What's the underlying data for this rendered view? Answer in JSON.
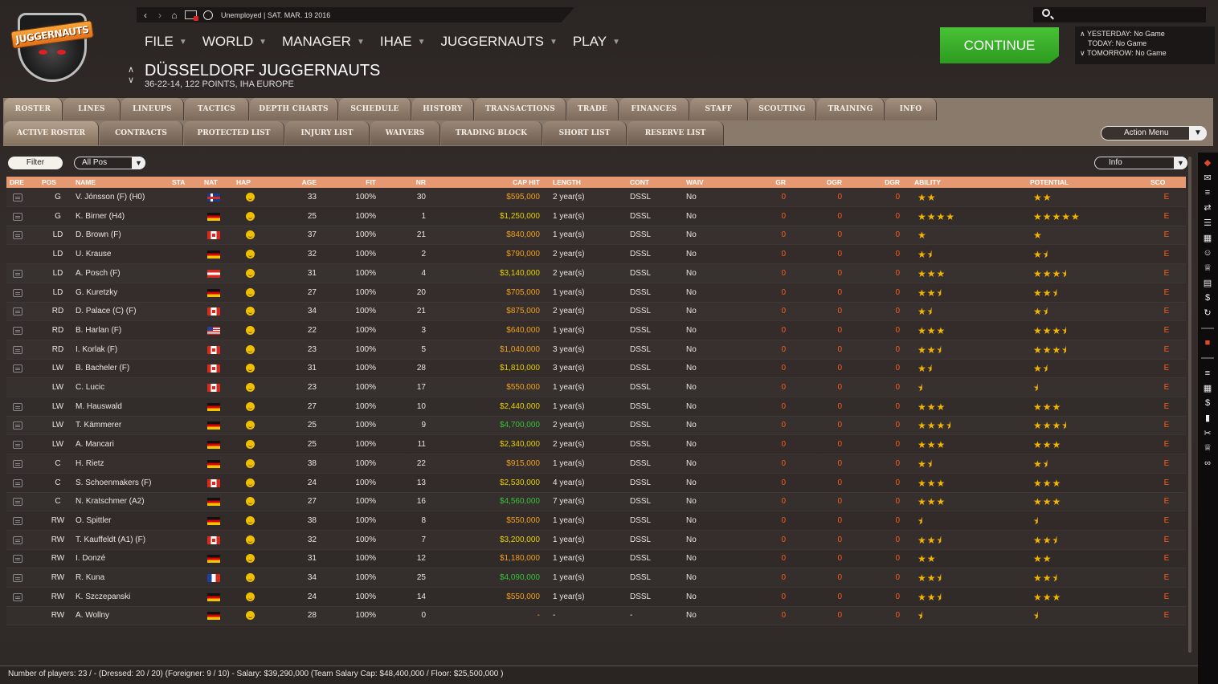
{
  "topbar": {
    "status": "Unemployed |  SAT. MAR. 19 2016"
  },
  "logo_text": "JUGGERNAUTS",
  "menu": [
    {
      "label": "FILE"
    },
    {
      "label": "WORLD"
    },
    {
      "label": "MANAGER"
    },
    {
      "label": "IHAE"
    },
    {
      "label": "JUGGERNAUTS"
    },
    {
      "label": "PLAY"
    }
  ],
  "team": {
    "name": "DÜSSELDORF JUGGERNAUTS",
    "record": "36-22-14, 122 POINTS, IHA EUROPE"
  },
  "continue_label": "CONTINUE",
  "schedule": {
    "yesterday": "YESTERDAY: No Game",
    "today": "TODAY: No Game",
    "tomorrow": "TOMORROW: No Game"
  },
  "tabs": [
    "ROSTER",
    "LINES",
    "LINEUPS",
    "TACTICS",
    "DEPTH CHARTS",
    "SCHEDULE",
    "HISTORY",
    "TRANSACTIONS",
    "TRADE",
    "FINANCES",
    "STAFF",
    "SCOUTING",
    "TRAINING",
    "INFO"
  ],
  "subtabs": [
    "ACTIVE ROSTER",
    "CONTRACTS",
    "PROTECTED LIST",
    "INJURY LIST",
    "WAIVERS",
    "TRADING BLOCK",
    "SHORT LIST",
    "RESERVE LIST"
  ],
  "action_menu": "Action Menu",
  "filter": {
    "button": "Filter",
    "position": "All Pos",
    "view": "Info"
  },
  "columns": [
    "DRE",
    "POS",
    "NAME",
    "STA",
    "NAT",
    "HAP",
    "AGE",
    "FIT",
    "NR",
    "CAP HIT",
    "LENGTH",
    "CONT",
    "WAIV",
    "GR",
    "OGR",
    "DGR",
    "ABILITY",
    "POTENTIAL",
    "SCO"
  ],
  "players": [
    {
      "dressed": true,
      "pos": "G",
      "name": "V. Jónsson (F) (H0)",
      "nat": "is",
      "age": "33",
      "fit": "100%",
      "nr": "30",
      "cap": "$595,000",
      "capc": "orange",
      "len": "2 year(s)",
      "cont": "DSSL",
      "waiv": "No",
      "gr": "0",
      "ogr": "0",
      "dgr": "0",
      "ability": "★★",
      "potential": "★★",
      "sco": "E"
    },
    {
      "dressed": true,
      "pos": "G",
      "name": "K. Birner (H4)",
      "nat": "de",
      "age": "25",
      "fit": "100%",
      "nr": "1",
      "cap": "$1,250,000",
      "capc": "yellow",
      "len": "1 year(s)",
      "cont": "DSSL",
      "waiv": "No",
      "gr": "0",
      "ogr": "0",
      "dgr": "0",
      "ability": "★★★★",
      "potential": "★★★★★",
      "sco": "E"
    },
    {
      "dressed": true,
      "pos": "LD",
      "name": "D. Brown (F)",
      "nat": "ca",
      "age": "37",
      "fit": "100%",
      "nr": "21",
      "cap": "$840,000",
      "capc": "orange",
      "len": "1 year(s)",
      "cont": "DSSL",
      "waiv": "No",
      "gr": "0",
      "ogr": "0",
      "dgr": "0",
      "ability": "★",
      "potential": "★",
      "sco": "E"
    },
    {
      "dressed": false,
      "pos": "LD",
      "name": "U. Krause",
      "nat": "de",
      "age": "32",
      "fit": "100%",
      "nr": "2",
      "cap": "$790,000",
      "capc": "orange",
      "len": "2 year(s)",
      "cont": "DSSL",
      "waiv": "No",
      "gr": "0",
      "ogr": "0",
      "dgr": "0",
      "ability": "★⯨",
      "potential": "★⯨",
      "sco": "E"
    },
    {
      "dressed": true,
      "pos": "LD",
      "name": "A. Posch (F)",
      "nat": "at",
      "age": "31",
      "fit": "100%",
      "nr": "4",
      "cap": "$3,140,000",
      "capc": "yellow",
      "len": "2 year(s)",
      "cont": "DSSL",
      "waiv": "No",
      "gr": "0",
      "ogr": "0",
      "dgr": "0",
      "ability": "★★★",
      "potential": "★★★⯨",
      "sco": "E"
    },
    {
      "dressed": true,
      "pos": "LD",
      "name": "G. Kuretzky",
      "nat": "de",
      "age": "27",
      "fit": "100%",
      "nr": "20",
      "cap": "$705,000",
      "capc": "orange",
      "len": "1 year(s)",
      "cont": "DSSL",
      "waiv": "No",
      "gr": "0",
      "ogr": "0",
      "dgr": "0",
      "ability": "★★⯨",
      "potential": "★★⯨",
      "sco": "E"
    },
    {
      "dressed": true,
      "pos": "RD",
      "name": "D. Palace (C) (F)",
      "nat": "ca",
      "age": "34",
      "fit": "100%",
      "nr": "21",
      "cap": "$875,000",
      "capc": "orange",
      "len": "2 year(s)",
      "cont": "DSSL",
      "waiv": "No",
      "gr": "0",
      "ogr": "0",
      "dgr": "0",
      "ability": "★⯨",
      "potential": "★⯨",
      "sco": "E"
    },
    {
      "dressed": true,
      "pos": "RD",
      "name": "B. Harlan (F)",
      "nat": "us",
      "age": "22",
      "fit": "100%",
      "nr": "3",
      "cap": "$640,000",
      "capc": "orange",
      "len": "1 year(s)",
      "cont": "DSSL",
      "waiv": "No",
      "gr": "0",
      "ogr": "0",
      "dgr": "0",
      "ability": "★★★",
      "potential": "★★★⯨",
      "sco": "E"
    },
    {
      "dressed": true,
      "pos": "RD",
      "name": "I. Korlak (F)",
      "nat": "ca",
      "age": "23",
      "fit": "100%",
      "nr": "5",
      "cap": "$1,040,000",
      "capc": "orange",
      "len": "3 year(s)",
      "cont": "DSSL",
      "waiv": "No",
      "gr": "0",
      "ogr": "0",
      "dgr": "0",
      "ability": "★★⯨",
      "potential": "★★★⯨",
      "sco": "E"
    },
    {
      "dressed": true,
      "pos": "LW",
      "name": "B. Bacheler (F)",
      "nat": "ca",
      "age": "31",
      "fit": "100%",
      "nr": "28",
      "cap": "$1,810,000",
      "capc": "yellow",
      "len": "3 year(s)",
      "cont": "DSSL",
      "waiv": "No",
      "gr": "0",
      "ogr": "0",
      "dgr": "0",
      "ability": "★⯨",
      "potential": "★⯨",
      "sco": "E"
    },
    {
      "dressed": false,
      "pos": "LW",
      "name": "C. Lucic",
      "nat": "ca",
      "age": "23",
      "fit": "100%",
      "nr": "17",
      "cap": "$550,000",
      "capc": "orange",
      "len": "1 year(s)",
      "cont": "DSSL",
      "waiv": "No",
      "gr": "0",
      "ogr": "0",
      "dgr": "0",
      "ability": "⯨",
      "potential": "⯨",
      "sco": "E"
    },
    {
      "dressed": true,
      "pos": "LW",
      "name": "M. Hauswald",
      "nat": "de",
      "age": "27",
      "fit": "100%",
      "nr": "10",
      "cap": "$2,440,000",
      "capc": "yellow",
      "len": "1 year(s)",
      "cont": "DSSL",
      "waiv": "No",
      "gr": "0",
      "ogr": "0",
      "dgr": "0",
      "ability": "★★★",
      "potential": "★★★",
      "sco": "E"
    },
    {
      "dressed": true,
      "pos": "LW",
      "name": "T. Kämmerer",
      "nat": "de",
      "age": "25",
      "fit": "100%",
      "nr": "9",
      "cap": "$4,700,000",
      "capc": "green",
      "len": "2 year(s)",
      "cont": "DSSL",
      "waiv": "No",
      "gr": "0",
      "ogr": "0",
      "dgr": "0",
      "ability": "★★★⯨",
      "potential": "★★★⯨",
      "sco": "E"
    },
    {
      "dressed": true,
      "pos": "LW",
      "name": "A. Mancari",
      "nat": "de",
      "age": "25",
      "fit": "100%",
      "nr": "11",
      "cap": "$2,340,000",
      "capc": "yellow",
      "len": "2 year(s)",
      "cont": "DSSL",
      "waiv": "No",
      "gr": "0",
      "ogr": "0",
      "dgr": "0",
      "ability": "★★★",
      "potential": "★★★",
      "sco": "E"
    },
    {
      "dressed": true,
      "pos": "C",
      "name": "H. Rietz",
      "nat": "de",
      "age": "38",
      "fit": "100%",
      "nr": "22",
      "cap": "$915,000",
      "capc": "orange",
      "len": "1 year(s)",
      "cont": "DSSL",
      "waiv": "No",
      "gr": "0",
      "ogr": "0",
      "dgr": "0",
      "ability": "★⯨",
      "potential": "★⯨",
      "sco": "E"
    },
    {
      "dressed": true,
      "pos": "C",
      "name": "S. Schoenmakers (F)",
      "nat": "ca",
      "age": "24",
      "fit": "100%",
      "nr": "13",
      "cap": "$2,530,000",
      "capc": "yellow",
      "len": "4 year(s)",
      "cont": "DSSL",
      "waiv": "No",
      "gr": "0",
      "ogr": "0",
      "dgr": "0",
      "ability": "★★★",
      "potential": "★★★",
      "sco": "E"
    },
    {
      "dressed": true,
      "pos": "C",
      "name": "N. Kratschmer (A2)",
      "nat": "de",
      "age": "27",
      "fit": "100%",
      "nr": "16",
      "cap": "$4,560,000",
      "capc": "green",
      "len": "7 year(s)",
      "cont": "DSSL",
      "waiv": "No",
      "gr": "0",
      "ogr": "0",
      "dgr": "0",
      "ability": "★★★",
      "potential": "★★★",
      "sco": "E"
    },
    {
      "dressed": true,
      "pos": "RW",
      "name": "O. Spittler",
      "nat": "de",
      "age": "38",
      "fit": "100%",
      "nr": "8",
      "cap": "$550,000",
      "capc": "orange",
      "len": "1 year(s)",
      "cont": "DSSL",
      "waiv": "No",
      "gr": "0",
      "ogr": "0",
      "dgr": "0",
      "ability": "⯨",
      "potential": "⯨",
      "sco": "E"
    },
    {
      "dressed": true,
      "pos": "RW",
      "name": "T. Kauffeldt (A1) (F)",
      "nat": "ca",
      "age": "32",
      "fit": "100%",
      "nr": "7",
      "cap": "$3,200,000",
      "capc": "yellow",
      "len": "1 year(s)",
      "cont": "DSSL",
      "waiv": "No",
      "gr": "0",
      "ogr": "0",
      "dgr": "0",
      "ability": "★★⯨",
      "potential": "★★⯨",
      "sco": "E"
    },
    {
      "dressed": true,
      "pos": "RW",
      "name": "I. Donzé",
      "nat": "de",
      "age": "31",
      "fit": "100%",
      "nr": "12",
      "cap": "$1,180,000",
      "capc": "orange",
      "len": "1 year(s)",
      "cont": "DSSL",
      "waiv": "No",
      "gr": "0",
      "ogr": "0",
      "dgr": "0",
      "ability": "★★",
      "potential": "★★",
      "sco": "E"
    },
    {
      "dressed": true,
      "pos": "RW",
      "name": "R. Kuna",
      "nat": "fr",
      "age": "34",
      "fit": "100%",
      "nr": "25",
      "cap": "$4,090,000",
      "capc": "green",
      "len": "1 year(s)",
      "cont": "DSSL",
      "waiv": "No",
      "gr": "0",
      "ogr": "0",
      "dgr": "0",
      "ability": "★★⯨",
      "potential": "★★⯨",
      "sco": "E"
    },
    {
      "dressed": true,
      "pos": "RW",
      "name": "K. Szczepanski",
      "nat": "de",
      "age": "24",
      "fit": "100%",
      "nr": "14",
      "cap": "$550,000",
      "capc": "orange",
      "len": "1 year(s)",
      "cont": "DSSL",
      "waiv": "No",
      "gr": "0",
      "ogr": "0",
      "dgr": "0",
      "ability": "★★⯨",
      "potential": "★★★",
      "sco": "E"
    },
    {
      "dressed": false,
      "pos": "RW",
      "name": "A. Wollny",
      "nat": "de",
      "age": "28",
      "fit": "100%",
      "nr": "0",
      "cap": "-",
      "capc": "orange",
      "len": "-",
      "cont": "-",
      "waiv": "No",
      "gr": "0",
      "ogr": "0",
      "dgr": "0",
      "ability": "⯨",
      "potential": "⯨",
      "sco": "E"
    }
  ],
  "footer": "Number of players: 23 / - (Dressed: 20 / 20) (Foreigner: 9 / 10) -  Salary: $39,290,000  (Team Salary Cap: $48,400,000 / Floor: $25,500,000 )",
  "colors": {
    "header_row": "#e69870",
    "continue": "#2c9b1f",
    "tab": "#8a7a6c",
    "zero_value": "#ff5a1a",
    "star": "#f4b400"
  },
  "icons": [
    "back-icon",
    "forward-icon",
    "home-icon",
    "mail-icon",
    "globe-icon",
    "search-icon"
  ]
}
